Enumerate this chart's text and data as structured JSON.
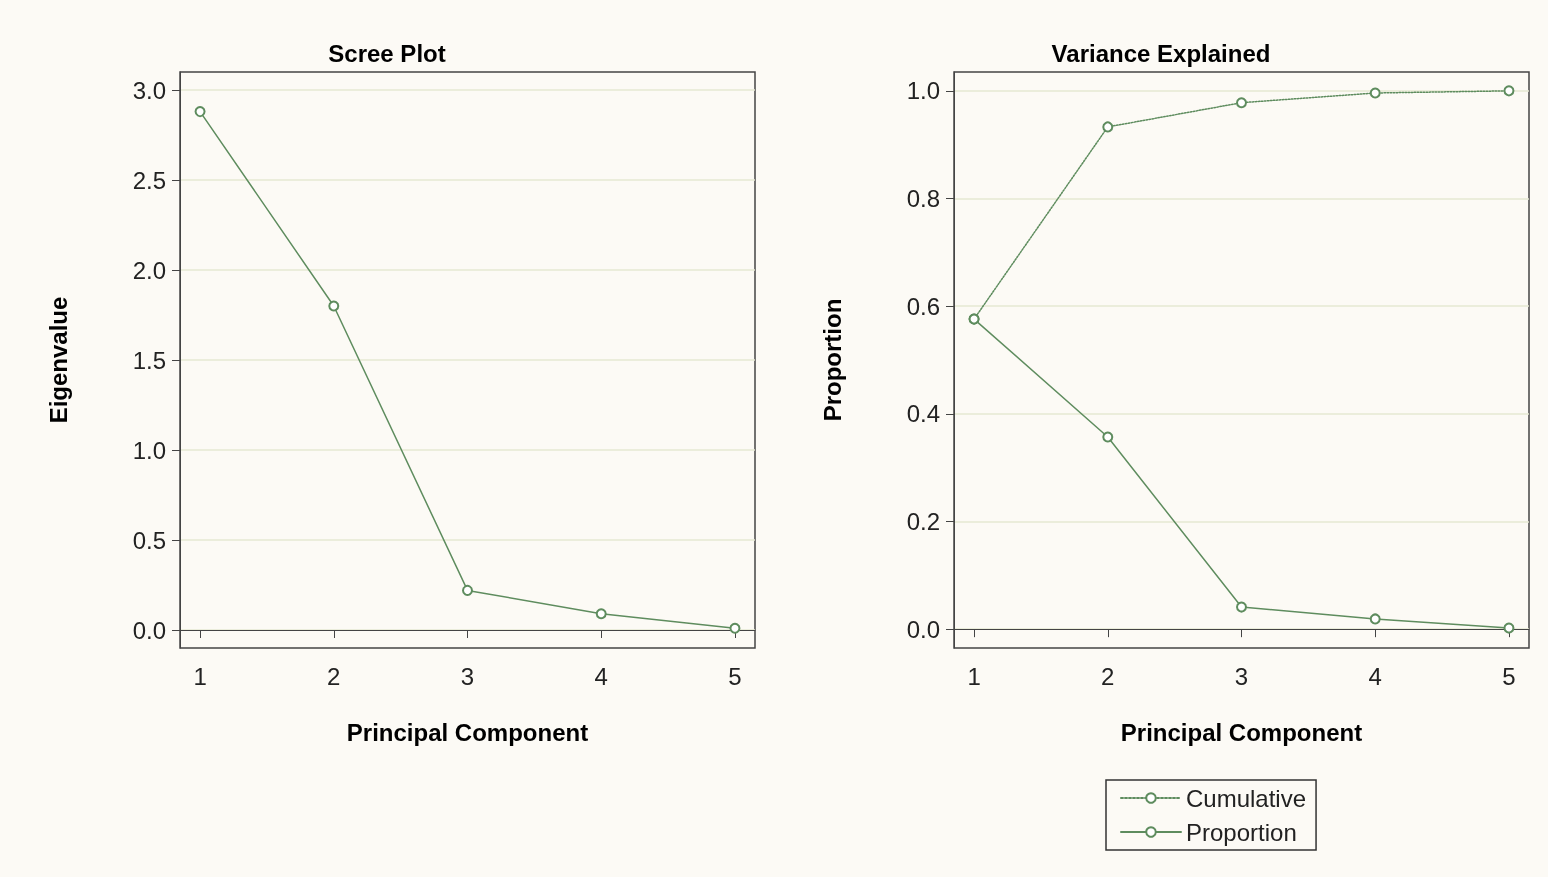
{
  "chart_data": [
    {
      "type": "line",
      "title": "Scree Plot",
      "xlabel": "Principal Component",
      "ylabel": "Eigenvalue",
      "x": [
        1,
        2,
        3,
        4,
        5
      ],
      "series": [
        {
          "color": "#5e8c5e",
          "values": [
            2.88,
            1.8,
            0.22,
            0.09,
            0.01
          ],
          "line_style": "solid"
        }
      ],
      "xlim": [
        0.85,
        5.15
      ],
      "xticks": [
        1,
        2,
        3,
        4,
        5
      ],
      "ylim": [
        -0.1,
        3.1
      ],
      "yticks": [
        {
          "value": 0,
          "label": "0.0"
        },
        0.5,
        {
          "value": 1,
          "label": "1.0"
        },
        1.5,
        {
          "value": 2,
          "label": "2.0"
        },
        2.5,
        {
          "value": 3,
          "label": "3.0"
        }
      ],
      "grid": "y",
      "marker": "circle",
      "legend": false
    },
    {
      "type": "line",
      "title": "Variance Explained",
      "xlabel": "Principal Component",
      "ylabel": "Proportion",
      "x": [
        1,
        2,
        3,
        4,
        5
      ],
      "series": [
        {
          "name": "Cumulative",
          "color": "#5e8c5e",
          "values": [
            0.576,
            0.933,
            0.978,
            0.996,
            1.0
          ],
          "line_style": "dotted"
        },
        {
          "name": "Proportion",
          "color": "#5e8c5e",
          "values": [
            0.576,
            0.357,
            0.041,
            0.019,
            0.002
          ],
          "line_style": "solid"
        }
      ],
      "xlim": [
        0.85,
        5.15
      ],
      "xticks": [
        1,
        2,
        3,
        4,
        5
      ],
      "ylim": [
        -0.035,
        1.035
      ],
      "yticks": [
        {
          "value": 0,
          "label": "0.0"
        },
        0.2,
        0.4,
        0.6,
        0.8,
        {
          "value": 1,
          "label": "1.0"
        }
      ],
      "grid": "y",
      "marker": "circle",
      "legend": "bottom"
    }
  ]
}
